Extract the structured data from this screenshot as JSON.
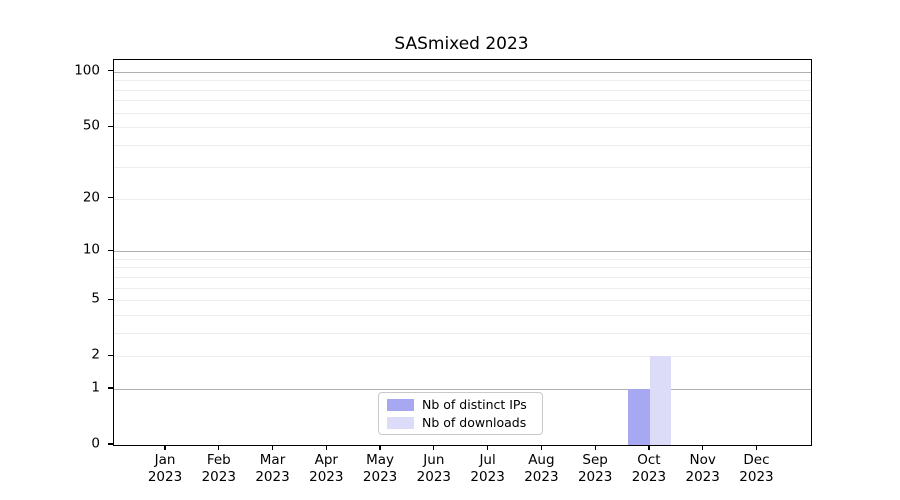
{
  "title": "SASmixed 2023",
  "legend": {
    "entries": [
      {
        "label": "Nb of distinct IPs",
        "color": "#a8a8f2"
      },
      {
        "label": "Nb of downloads",
        "color": "#dcdcf9"
      }
    ]
  },
  "axes": {
    "y_ticks": [
      {
        "value": 100,
        "label": "100"
      },
      {
        "value": 50,
        "label": "50"
      },
      {
        "value": 20,
        "label": "20"
      },
      {
        "value": 10,
        "label": "10"
      },
      {
        "value": 5,
        "label": "5"
      },
      {
        "value": 2,
        "label": "2"
      },
      {
        "value": 1,
        "label": "1"
      },
      {
        "value": 0,
        "label": "0"
      }
    ],
    "y_minor_gridlines": [
      2,
      3,
      4,
      5,
      6,
      7,
      8,
      9,
      20,
      30,
      40,
      50,
      60,
      70,
      80,
      90
    ],
    "y_major_gridlines": [
      1,
      10,
      100
    ],
    "x_ticks": [
      {
        "month": "Jan",
        "year": "2023"
      },
      {
        "month": "Feb",
        "year": "2023"
      },
      {
        "month": "Mar",
        "year": "2023"
      },
      {
        "month": "Apr",
        "year": "2023"
      },
      {
        "month": "May",
        "year": "2023"
      },
      {
        "month": "Jun",
        "year": "2023"
      },
      {
        "month": "Jul",
        "year": "2023"
      },
      {
        "month": "Aug",
        "year": "2023"
      },
      {
        "month": "Sep",
        "year": "2023"
      },
      {
        "month": "Oct",
        "year": "2023"
      },
      {
        "month": "Nov",
        "year": "2023"
      },
      {
        "month": "Dec",
        "year": "2023"
      }
    ]
  },
  "chart_data": {
    "type": "bar",
    "title": "SASmixed 2023",
    "xlabel": "",
    "ylabel": "",
    "categories": [
      "Jan 2023",
      "Feb 2023",
      "Mar 2023",
      "Apr 2023",
      "May 2023",
      "Jun 2023",
      "Jul 2023",
      "Aug 2023",
      "Sep 2023",
      "Oct 2023",
      "Nov 2023",
      "Dec 2023"
    ],
    "series": [
      {
        "name": "Nb of distinct IPs",
        "color": "#a8a8f2",
        "values": [
          0,
          0,
          0,
          0,
          0,
          0,
          0,
          0,
          0,
          1,
          0,
          0
        ]
      },
      {
        "name": "Nb of downloads",
        "color": "#dcdcf9",
        "values": [
          0,
          0,
          0,
          0,
          0,
          0,
          0,
          0,
          0,
          2,
          0,
          0
        ]
      }
    ],
    "yscale": "symlog (log1p)",
    "ylim": [
      0,
      116
    ],
    "ytick_values": [
      0,
      1,
      2,
      5,
      10,
      20,
      50,
      100
    ],
    "grid": true,
    "legend_position": "lower center inside plot"
  },
  "colors": {
    "major_grid": "#b0b0b0",
    "minor_grid": "#ededed",
    "spine": "#000000",
    "background": "#ffffff"
  }
}
